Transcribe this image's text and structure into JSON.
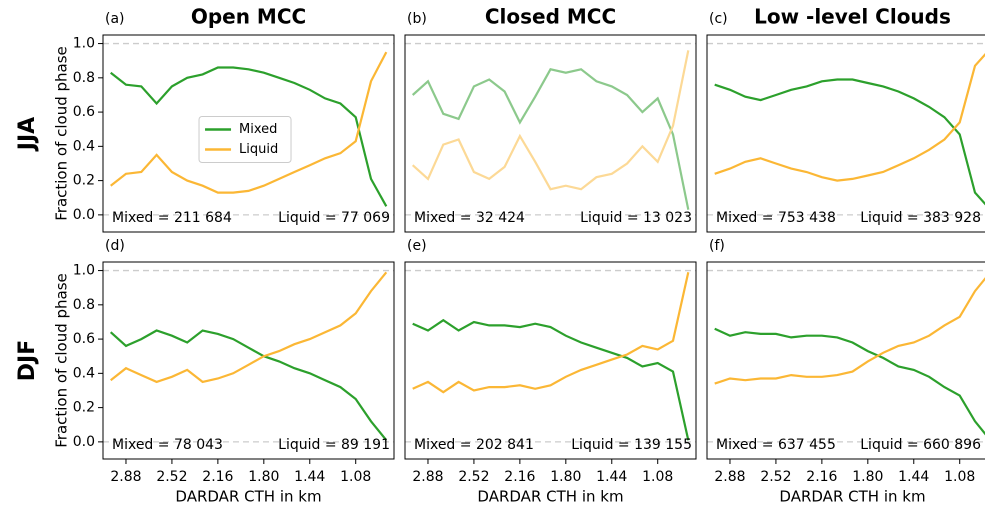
{
  "chart_data": [
    {
      "type": "line",
      "panel_label": "(a)",
      "title": "Open MCC",
      "row_label": "JJA",
      "ylabel": "Fraction of cloud phase",
      "x": [
        3.0,
        2.88,
        2.76,
        2.64,
        2.52,
        2.4,
        2.28,
        2.16,
        2.04,
        1.92,
        1.8,
        1.68,
        1.56,
        1.44,
        1.32,
        1.2,
        1.08,
        0.96,
        0.84
      ],
      "xlim": [
        3.06,
        0.78
      ],
      "ylim": [
        -0.1,
        1.05
      ],
      "yticks": [
        {
          "value": 0,
          "label": "0.0"
        },
        0.2,
        0.4,
        0.6,
        0.8,
        {
          "value": 1,
          "label": "1.0"
        }
      ],
      "hlines": [
        0,
        1
      ],
      "legend": "center",
      "series": [
        {
          "name": "Mixed",
          "color": "#2ca02c",
          "values": [
            0.83,
            0.76,
            0.75,
            0.65,
            0.75,
            0.8,
            0.82,
            0.86,
            0.86,
            0.85,
            0.83,
            0.8,
            0.77,
            0.73,
            0.68,
            0.65,
            0.57,
            0.21,
            0.05
          ]
        },
        {
          "name": "Liquid",
          "color": "#fbb735",
          "values": [
            0.17,
            0.24,
            0.25,
            0.35,
            0.25,
            0.2,
            0.17,
            0.13,
            0.13,
            0.14,
            0.17,
            0.21,
            0.25,
            0.29,
            0.33,
            0.36,
            0.43,
            0.78,
            0.95
          ]
        }
      ],
      "annotations": [
        "Mixed = 211 684",
        "Liquid = 77 069"
      ]
    },
    {
      "type": "line",
      "panel_label": "(b)",
      "title": "Closed MCC",
      "x": [
        3.0,
        2.88,
        2.76,
        2.64,
        2.52,
        2.4,
        2.28,
        2.16,
        2.04,
        1.92,
        1.8,
        1.68,
        1.56,
        1.44,
        1.32,
        1.2,
        1.08,
        0.96,
        0.84
      ],
      "xlim": [
        3.06,
        0.78
      ],
      "ylim": [
        -0.1,
        1.05
      ],
      "hlines": [
        0,
        1
      ],
      "series": [
        {
          "color": "#8cc98c",
          "values": [
            0.7,
            0.78,
            0.59,
            0.56,
            0.75,
            0.79,
            0.72,
            0.54,
            0.69,
            0.85,
            0.83,
            0.85,
            0.78,
            0.75,
            0.7,
            0.6,
            0.68,
            0.47,
            0.03
          ]
        },
        {
          "color": "#fcd996",
          "values": [
            0.29,
            0.21,
            0.41,
            0.44,
            0.25,
            0.21,
            0.28,
            0.46,
            0.31,
            0.15,
            0.17,
            0.15,
            0.22,
            0.24,
            0.3,
            0.4,
            0.31,
            0.52,
            0.96
          ]
        }
      ],
      "annotations": [
        "Mixed = 32 424",
        "Liquid = 13 023"
      ]
    },
    {
      "type": "line",
      "panel_label": "(c)",
      "title": "Low -level Clouds",
      "x": [
        3.0,
        2.88,
        2.76,
        2.64,
        2.52,
        2.4,
        2.28,
        2.16,
        2.04,
        1.92,
        1.8,
        1.68,
        1.56,
        1.44,
        1.32,
        1.2,
        1.08,
        0.96,
        0.84
      ],
      "xlim": [
        3.06,
        0.78
      ],
      "ylim": [
        -0.1,
        1.05
      ],
      "hlines": [
        0,
        1
      ],
      "series": [
        {
          "color": "#2ca02c",
          "values": [
            0.76,
            0.73,
            0.69,
            0.67,
            0.7,
            0.73,
            0.75,
            0.78,
            0.79,
            0.79,
            0.77,
            0.75,
            0.72,
            0.68,
            0.63,
            0.57,
            0.47,
            0.13,
            0.03
          ]
        },
        {
          "color": "#fbb735",
          "values": [
            0.24,
            0.27,
            0.31,
            0.33,
            0.3,
            0.27,
            0.25,
            0.22,
            0.2,
            0.21,
            0.23,
            0.25,
            0.29,
            0.33,
            0.38,
            0.44,
            0.54,
            0.87,
            0.97
          ]
        }
      ],
      "annotations": [
        "Mixed = 753 438",
        "Liquid = 383 928"
      ]
    },
    {
      "type": "line",
      "panel_label": "(d)",
      "row_label": "DJF",
      "ylabel": "Fraction of cloud phase",
      "xlabel": "DARDAR CTH in km",
      "x": [
        3.0,
        2.88,
        2.76,
        2.64,
        2.52,
        2.4,
        2.28,
        2.16,
        2.04,
        1.92,
        1.8,
        1.68,
        1.56,
        1.44,
        1.32,
        1.2,
        1.08,
        0.96,
        0.84
      ],
      "xlim": [
        3.06,
        0.78
      ],
      "ylim": [
        -0.1,
        1.05
      ],
      "xticks": [
        2.88,
        2.52,
        2.16,
        {
          "value": 1.8,
          "label": "1.80"
        },
        1.44,
        1.08
      ],
      "yticks": [
        {
          "value": 0,
          "label": "0.0"
        },
        0.2,
        0.4,
        0.6,
        0.8,
        {
          "value": 1,
          "label": "1.0"
        }
      ],
      "hlines": [
        0,
        1
      ],
      "series": [
        {
          "color": "#2ca02c",
          "values": [
            0.64,
            0.56,
            0.6,
            0.65,
            0.62,
            0.58,
            0.65,
            0.63,
            0.6,
            0.55,
            0.5,
            0.47,
            0.43,
            0.4,
            0.36,
            0.32,
            0.25,
            0.12,
            0.01
          ]
        },
        {
          "color": "#fbb735",
          "values": [
            0.36,
            0.43,
            0.39,
            0.35,
            0.38,
            0.42,
            0.35,
            0.37,
            0.4,
            0.45,
            0.5,
            0.53,
            0.57,
            0.6,
            0.64,
            0.68,
            0.75,
            0.88,
            0.99
          ]
        }
      ],
      "annotations": [
        "Mixed = 78 043",
        "Liquid = 89 191"
      ]
    },
    {
      "type": "line",
      "panel_label": "(e)",
      "xlabel": "DARDAR CTH in km",
      "x": [
        3.0,
        2.88,
        2.76,
        2.64,
        2.52,
        2.4,
        2.28,
        2.16,
        2.04,
        1.92,
        1.8,
        1.68,
        1.56,
        1.44,
        1.32,
        1.2,
        1.08,
        0.96,
        0.84
      ],
      "xlim": [
        3.06,
        0.78
      ],
      "ylim": [
        -0.1,
        1.05
      ],
      "xticks": [
        2.88,
        2.52,
        2.16,
        {
          "value": 1.8,
          "label": "1.80"
        },
        1.44,
        1.08
      ],
      "hlines": [
        0,
        1
      ],
      "series": [
        {
          "color": "#2ca02c",
          "values": [
            0.69,
            0.65,
            0.71,
            0.65,
            0.7,
            0.68,
            0.68,
            0.67,
            0.69,
            0.67,
            0.62,
            0.58,
            0.55,
            0.52,
            0.49,
            0.44,
            0.46,
            0.41,
            0.01
          ]
        },
        {
          "color": "#fbb735",
          "values": [
            0.31,
            0.35,
            0.29,
            0.35,
            0.3,
            0.32,
            0.32,
            0.33,
            0.31,
            0.33,
            0.38,
            0.42,
            0.45,
            0.48,
            0.51,
            0.56,
            0.54,
            0.59,
            0.99
          ]
        }
      ],
      "annotations": [
        "Mixed = 202 841",
        "Liquid = 139 155"
      ]
    },
    {
      "type": "line",
      "panel_label": "(f)",
      "xlabel": "DARDAR CTH in km",
      "x": [
        3.0,
        2.88,
        2.76,
        2.64,
        2.52,
        2.4,
        2.28,
        2.16,
        2.04,
        1.92,
        1.8,
        1.68,
        1.56,
        1.44,
        1.32,
        1.2,
        1.08,
        0.96,
        0.84
      ],
      "xlim": [
        3.06,
        0.78
      ],
      "ylim": [
        -0.1,
        1.05
      ],
      "xticks": [
        2.88,
        2.52,
        2.16,
        {
          "value": 1.8,
          "label": "1.80"
        },
        1.44,
        1.08
      ],
      "hlines": [
        0,
        1
      ],
      "series": [
        {
          "color": "#2ca02c",
          "values": [
            0.66,
            0.62,
            0.64,
            0.63,
            0.63,
            0.61,
            0.62,
            0.62,
            0.61,
            0.58,
            0.53,
            0.49,
            0.44,
            0.42,
            0.38,
            0.32,
            0.27,
            0.12,
            0.01
          ]
        },
        {
          "color": "#fbb735",
          "values": [
            0.34,
            0.37,
            0.36,
            0.37,
            0.37,
            0.39,
            0.38,
            0.38,
            0.39,
            0.41,
            0.47,
            0.52,
            0.56,
            0.58,
            0.62,
            0.68,
            0.73,
            0.88,
            0.99
          ]
        }
      ],
      "annotations": [
        "Mixed = 637 455",
        "Liquid = 660 896"
      ]
    }
  ]
}
